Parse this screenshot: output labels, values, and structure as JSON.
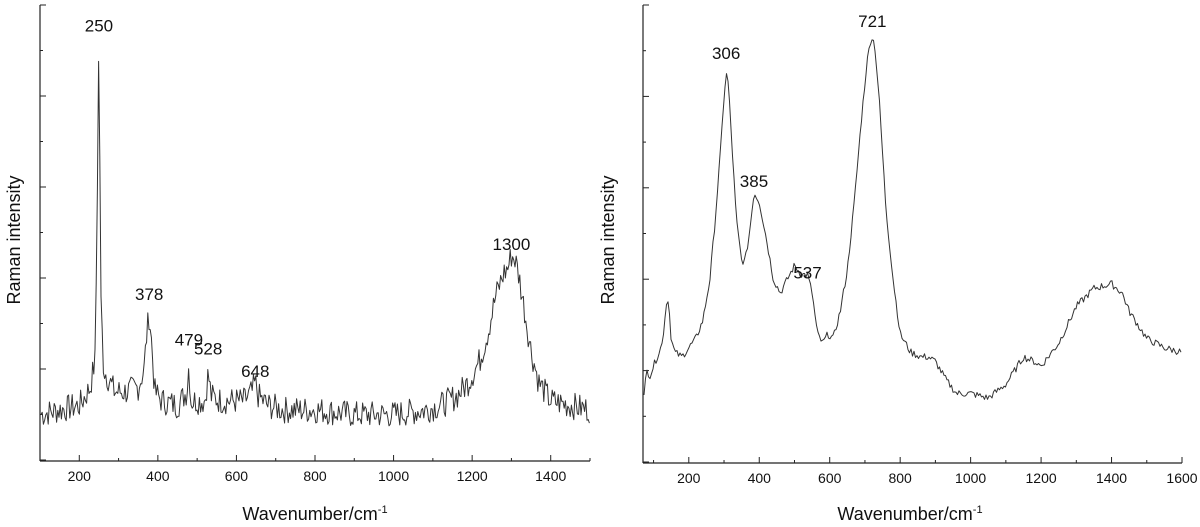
{
  "chart_data": [
    {
      "type": "line",
      "xlabel": "Wavenumber/cm",
      "xlabel_sup": "-1",
      "ylabel": "Raman intensity",
      "xlim": [
        100,
        1500
      ],
      "ylim": [
        0,
        100
      ],
      "xticks": [
        200,
        400,
        600,
        800,
        1000,
        1200,
        1400
      ],
      "grid": false,
      "peaks": [
        {
          "label": "250",
          "x": 250,
          "y": 92
        },
        {
          "label": "378",
          "x": 378,
          "y": 33
        },
        {
          "label": "479",
          "x": 479,
          "y": 23
        },
        {
          "label": "528",
          "x": 528,
          "y": 21
        },
        {
          "label": "648",
          "x": 648,
          "y": 16
        },
        {
          "label": "1300",
          "x": 1300,
          "y": 44
        }
      ],
      "series": [
        {
          "x": [
            100,
            150,
            200,
            215,
            228,
            240,
            245,
            248,
            250,
            252,
            255,
            262,
            290,
            320,
            350,
            365,
            372,
            378,
            384,
            392,
            410,
            450,
            474,
            479,
            484,
            520,
            528,
            536,
            560,
            620,
            640,
            648,
            656,
            680,
            720,
            800,
            900,
            1000,
            1080,
            1120,
            1160,
            1190,
            1220,
            1240,
            1260,
            1280,
            1290,
            1300,
            1310,
            1320,
            1335,
            1350,
            1370,
            1400,
            1450,
            1500
          ],
          "y": [
            10,
            11,
            12,
            14,
            16,
            22,
            50,
            80,
            92,
            70,
            35,
            20,
            15,
            15,
            16,
            20,
            28,
            32,
            26,
            15,
            13,
            12,
            15,
            21,
            13,
            13,
            19,
            14,
            13,
            13,
            15,
            17,
            14,
            12,
            11,
            11,
            10,
            10,
            11,
            12,
            14,
            17,
            22,
            28,
            36,
            41,
            42,
            45,
            44,
            40,
            32,
            24,
            17,
            13,
            12,
            11
          ],
          "noise": 3.0
        }
      ]
    },
    {
      "type": "line",
      "xlabel": "Wavenumber/cm",
      "xlabel_sup": "-1",
      "ylabel": "Raman intensity",
      "xlim": [
        70,
        1600
      ],
      "ylim": [
        0,
        100
      ],
      "xticks": [
        200,
        400,
        600,
        800,
        1000,
        1200,
        1400,
        1600
      ],
      "grid": false,
      "peaks": [
        {
          "label": "306",
          "x": 306,
          "y": 86
        },
        {
          "label": "385",
          "x": 385,
          "y": 58
        },
        {
          "label": "537",
          "x": 537,
          "y": 38
        },
        {
          "label": "721",
          "x": 721,
          "y": 93
        }
      ],
      "series": [
        {
          "x": [
            70,
            80,
            90,
            110,
            125,
            135,
            142,
            150,
            160,
            180,
            200,
            220,
            240,
            260,
            275,
            290,
            300,
            306,
            312,
            322,
            335,
            350,
            360,
            372,
            385,
            400,
            420,
            440,
            460,
            480,
            500,
            520,
            537,
            550,
            565,
            580,
            595,
            610,
            630,
            650,
            670,
            690,
            705,
            715,
            721,
            728,
            740,
            760,
            780,
            800,
            830,
            860,
            880,
            900,
            930,
            960,
            1000,
            1050,
            1100,
            1150,
            1180,
            1200,
            1250,
            1300,
            1350,
            1400,
            1430,
            1450,
            1500,
            1550,
            1600
          ],
          "y": [
            12,
            20,
            19,
            23,
            26,
            34,
            36,
            27,
            24,
            23,
            25,
            27,
            31,
            40,
            53,
            68,
            80,
            85,
            83,
            70,
            53,
            44,
            44,
            50,
            59,
            57,
            49,
            40,
            37,
            40,
            43,
            41,
            41,
            37,
            28,
            26,
            28,
            27,
            33,
            42,
            57,
            75,
            87,
            92,
            93,
            91,
            80,
            55,
            40,
            28,
            24,
            23,
            23,
            22,
            18,
            15,
            15,
            14,
            17,
            23,
            22,
            21,
            26,
            34,
            38,
            39,
            37,
            33,
            27,
            25,
            24
          ],
          "noise": 0.8
        }
      ]
    }
  ]
}
